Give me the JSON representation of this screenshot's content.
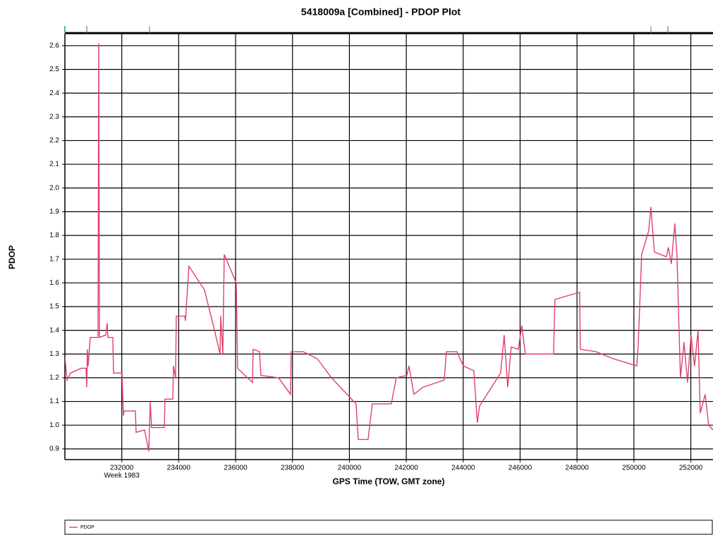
{
  "chart_data": {
    "type": "line",
    "title": "5418009a [Combined] - PDOP Plot",
    "x_label": "GPS Time (TOW, GMT zone)",
    "y_label": "PDOP",
    "annotation": "Week 1983",
    "xlim": [
      230000,
      252780
    ],
    "ylim": [
      0.855,
      2.65
    ],
    "xticks": [
      232000,
      234000,
      236000,
      238000,
      240000,
      242000,
      244000,
      246000,
      248000,
      250000,
      252000
    ],
    "yticks": [
      0.9,
      {
        "value": 1.0,
        "label": "1.0"
      },
      1.1,
      1.2,
      1.3,
      1.4,
      1.5,
      1.6,
      1.7,
      1.8,
      1.9,
      {
        "value": 2.0,
        "label": "2.0"
      },
      2.1,
      2.2,
      2.3,
      2.4,
      2.5,
      2.6
    ],
    "grid": true,
    "legend": "bottom",
    "x": [
      230000,
      230074,
      230198,
      230570,
      230743,
      230768,
      230793,
      230818,
      230892,
      231165,
      231190,
      231215,
      231437,
      231487,
      231512,
      231685,
      231710,
      232007,
      232057,
      232082,
      232478,
      232503,
      232800,
      232949,
      232999,
      233048,
      233494,
      233519,
      233792,
      233817,
      233891,
      233916,
      234213,
      234238,
      234362,
      234907,
      235279,
      235452,
      235477,
      235551,
      235601,
      236022,
      236072,
      236592,
      236617,
      236840,
      236890,
      237509,
      237931,
      237955,
      238377,
      238873,
      239368,
      240235,
      240310,
      240657,
      240805,
      241474,
      241648,
      242020,
      242094,
      242267,
      242590,
      243333,
      243408,
      243779,
      244002,
      244374,
      244498,
      244572,
      245316,
      245440,
      245564,
      245688,
      245936,
      246060,
      246184,
      247175,
      247225,
      247795,
      248092,
      248117,
      248662,
      249281,
      250099,
      250149,
      250273,
      250521,
      250595,
      250719,
      251140,
      251215,
      251314,
      251438,
      251512,
      251587,
      251636,
      251760,
      251884,
      252008,
      252132,
      252256,
      252330,
      252504,
      252628,
      252777
    ],
    "series": [
      {
        "name": "PDOP",
        "color": "#e0406a",
        "values": [
          1.29,
          1.19,
          1.22,
          1.24,
          1.24,
          1.16,
          1.32,
          1.25,
          1.37,
          1.37,
          2.61,
          1.37,
          1.38,
          1.43,
          1.37,
          1.37,
          1.22,
          1.22,
          1.04,
          1.06,
          1.06,
          0.97,
          0.98,
          0.89,
          1.1,
          0.99,
          0.99,
          1.11,
          1.11,
          1.25,
          1.2,
          1.46,
          1.46,
          1.44,
          1.67,
          1.57,
          1.39,
          1.3,
          1.46,
          1.3,
          1.72,
          1.6,
          1.24,
          1.18,
          1.32,
          1.31,
          1.21,
          1.2,
          1.13,
          1.31,
          1.31,
          1.28,
          1.2,
          1.09,
          0.94,
          0.94,
          1.09,
          1.09,
          1.2,
          1.21,
          1.25,
          1.13,
          1.16,
          1.19,
          1.31,
          1.31,
          1.25,
          1.23,
          1.01,
          1.08,
          1.22,
          1.38,
          1.16,
          1.33,
          1.32,
          1.42,
          1.3,
          1.3,
          1.53,
          1.55,
          1.56,
          1.32,
          1.31,
          1.28,
          1.25,
          1.33,
          1.72,
          1.82,
          1.92,
          1.73,
          1.71,
          1.75,
          1.68,
          1.85,
          1.72,
          1.4,
          1.2,
          1.35,
          1.18,
          1.38,
          1.25,
          1.4,
          1.05,
          1.13,
          1.0,
          0.98
        ]
      }
    ]
  }
}
